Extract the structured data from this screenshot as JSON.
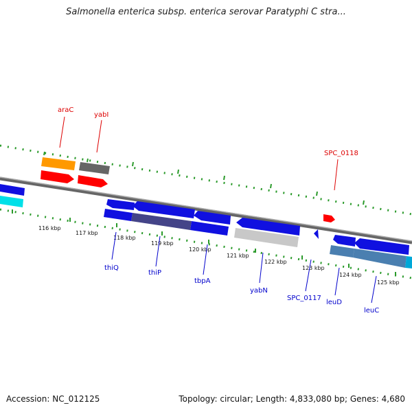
{
  "title": "Salmonella enterica subsp. enterica serovar Paratyphi C stra...",
  "footer": {
    "accession": "Accession: NC_012125",
    "summary": "Topology: circular; Length: 4,833,080 bp; Genes: 4,680"
  },
  "colors": {
    "backbone": "#888888",
    "tick_marks": "#2a9a2a",
    "forward_gene": "#1010e0",
    "reverse_gene": "#1010e0",
    "gene_label_blue": "#0000cc",
    "gene_label_red": "#dd0000",
    "araC_orange": "#ff9900",
    "yabI_gray": "#666666",
    "red_genes": "#ff0000",
    "cyan": "#00e0e8",
    "light_gray": "#c8c8c8",
    "indigo": "#444488",
    "steel_blue": "#4a7fb0"
  },
  "ticks": [
    "116 kbp",
    "117 kbp",
    "118 kbp",
    "119 kbp",
    "120 kbp",
    "121 kbp",
    "122 kbp",
    "123 kbp",
    "124 kbp",
    "125 kbp"
  ],
  "labels": {
    "top": [
      "araC",
      "yabI",
      "SPC_0118"
    ],
    "bottom": [
      "thiQ",
      "thiP",
      "tbpA",
      "yabN",
      "SPC_0117",
      "leuD",
      "leuC"
    ]
  }
}
